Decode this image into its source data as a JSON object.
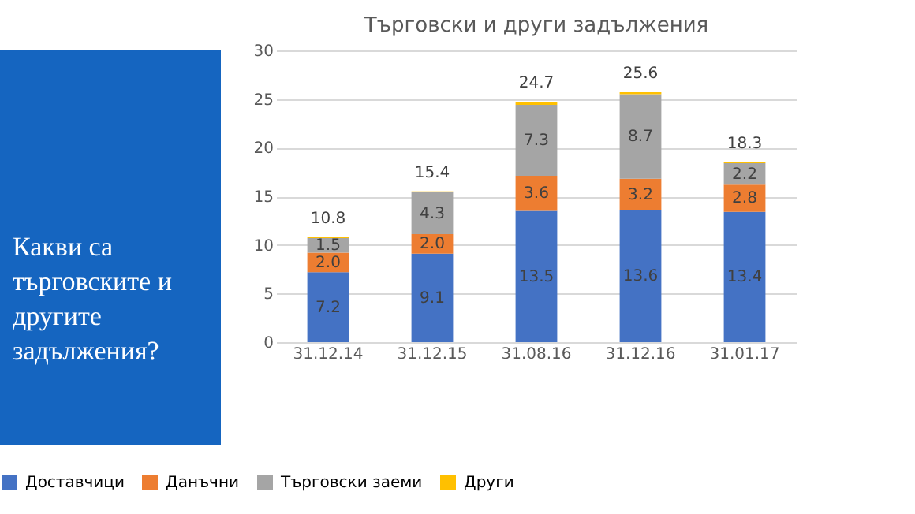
{
  "chart_data": {
    "type": "bar",
    "title": "Търговски и други задължения",
    "stacked": true,
    "categories": [
      "31.12.14",
      "31.12.15",
      "31.08.16",
      "31.12.16",
      "31.01.17"
    ],
    "series": [
      {
        "name": "Доставчици",
        "color": "#4472c4",
        "values": [
          7.2,
          9.1,
          13.5,
          13.6,
          13.4
        ],
        "value_labels": [
          "7.2",
          "9.1",
          "13.5",
          "13.6",
          "13.4"
        ]
      },
      {
        "name": "Данъчни",
        "color": "#ed7d31",
        "values": [
          2.0,
          2.0,
          3.6,
          3.2,
          2.8
        ],
        "value_labels": [
          "2.0",
          "2.0",
          "3.6",
          "3.2",
          "2.8"
        ]
      },
      {
        "name": "Търговски заеми",
        "color": "#a5a5a5",
        "values": [
          1.5,
          4.3,
          7.3,
          8.7,
          2.2
        ],
        "value_labels": [
          "1.5",
          "4.3",
          "7.3",
          "8.7",
          "2.2"
        ]
      },
      {
        "name": "Други",
        "color": "#ffc000",
        "values": [
          0.1,
          0.1,
          0.3,
          0.2,
          0.1
        ]
      }
    ],
    "totals": [
      "10.8",
      "15.4",
      "24.7",
      "25.6",
      "18.3"
    ],
    "ylim": [
      0,
      30
    ],
    "yticks": [
      0,
      5,
      10,
      15,
      20,
      25,
      30
    ],
    "grid": "y",
    "legend": "bottom",
    "annotations": [
      "Какви са търговските и другите задължения?"
    ]
  }
}
